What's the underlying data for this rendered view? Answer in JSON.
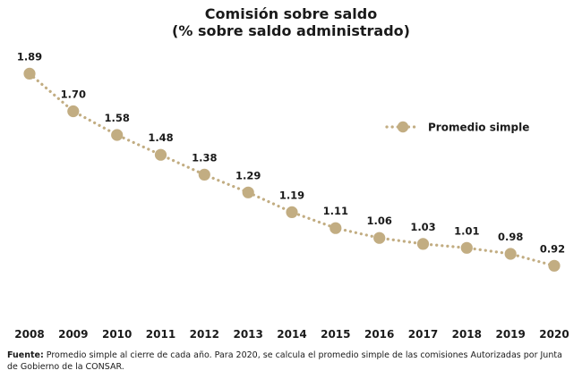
{
  "chart_data": {
    "type": "line",
    "title": "Comisión sobre saldo",
    "subtitle": "(% sobre saldo administrado)",
    "x": [
      "2008",
      "2009",
      "2010",
      "2011",
      "2012",
      "2013",
      "2014",
      "2015",
      "2016",
      "2017",
      "2018",
      "2019",
      "2020"
    ],
    "series": [
      {
        "name": "Promedio simple",
        "values": [
          1.89,
          1.7,
          1.58,
          1.48,
          1.38,
          1.29,
          1.19,
          1.11,
          1.06,
          1.03,
          1.01,
          0.98,
          0.92
        ],
        "labels": [
          "1.89",
          "1.70",
          "1.58",
          "1.48",
          "1.38",
          "1.29",
          "1.19",
          "1.11",
          "1.06",
          "1.03",
          "1.01",
          "0.98",
          "0.92"
        ]
      }
    ],
    "xlabel": "",
    "ylabel": "",
    "ylim": [
      0.7,
      2.0
    ],
    "grid": false,
    "legend_position": "right",
    "line_style": "dotted",
    "color": "#c2ad82"
  },
  "footer": {
    "source_label": "Fuente:",
    "source_text": " Promedio simple al cierre de cada año. Para 2020, se calcula el promedio simple de las comisiones Autorizadas por Junta de Gobierno de la CONSAR."
  }
}
